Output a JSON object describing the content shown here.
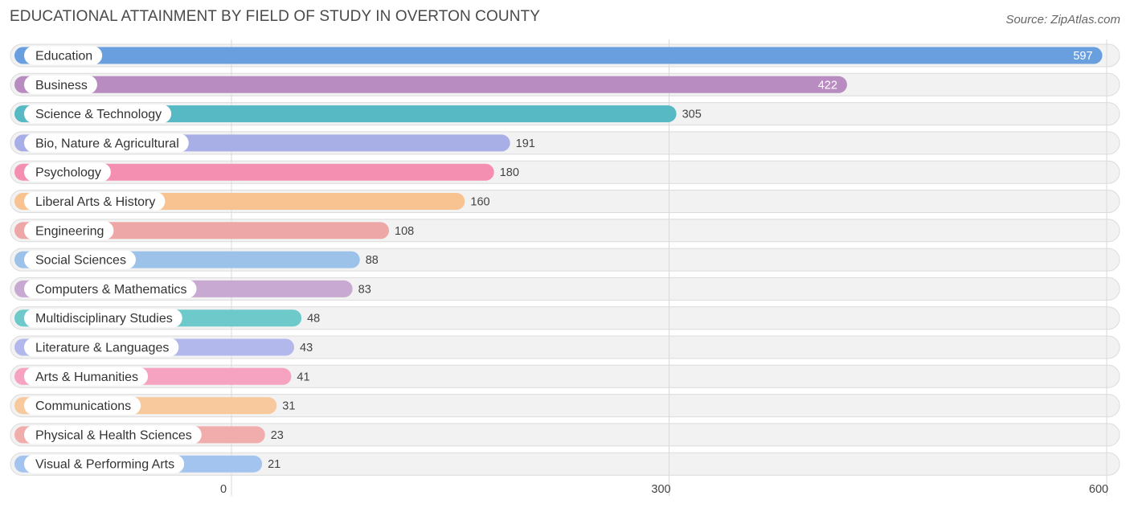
{
  "title": "EDUCATIONAL ATTAINMENT BY FIELD OF STUDY IN OVERTON COUNTY",
  "source": "Source: ZipAtlas.com",
  "chart_data": {
    "type": "bar",
    "orientation": "horizontal",
    "title": "EDUCATIONAL ATTAINMENT BY FIELD OF STUDY IN OVERTON COUNTY",
    "xlabel": "",
    "ylabel": "",
    "xlim": [
      0,
      600
    ],
    "ticks": [
      0,
      300,
      600
    ],
    "grid": true,
    "categories": [
      "Education",
      "Business",
      "Science & Technology",
      "Bio, Nature & Agricultural",
      "Psychology",
      "Liberal Arts & History",
      "Engineering",
      "Social Sciences",
      "Computers & Mathematics",
      "Multidisciplinary Studies",
      "Literature & Languages",
      "Arts & Humanities",
      "Communications",
      "Physical & Health Sciences",
      "Visual & Performing Arts"
    ],
    "values": [
      597,
      422,
      305,
      191,
      180,
      160,
      108,
      88,
      83,
      48,
      43,
      41,
      31,
      23,
      21
    ],
    "colors": [
      "#6a9fdf",
      "#b88cc0",
      "#56b9c4",
      "#a8afe6",
      "#f48fb1",
      "#f8c391",
      "#eea7a7",
      "#9dc2ea",
      "#c8a9d2",
      "#6ec9cb",
      "#b2b8ec",
      "#f5a3c0",
      "#f8c99c",
      "#f0adab",
      "#a3c4ee"
    ]
  }
}
